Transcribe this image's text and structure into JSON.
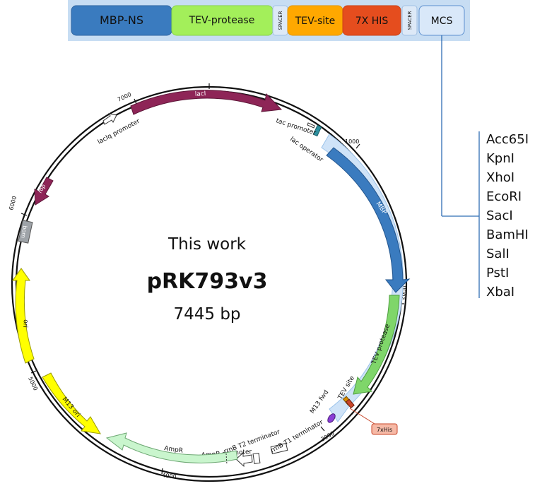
{
  "construct_bar": {
    "segments": [
      {
        "label": "MBP-NS",
        "color": "#3a7bbf"
      },
      {
        "label": "TEV-protease",
        "color": "#a3ef5a"
      },
      {
        "label": "SPACER",
        "color": "#dde9f7"
      },
      {
        "label": "TEV-site",
        "color": "#ffa800"
      },
      {
        "label": "7X HIS",
        "color": "#e54d1e"
      },
      {
        "label": "SPACER",
        "color": "#dde9f7"
      },
      {
        "label": "MCS",
        "color": "#d9e8f9"
      }
    ],
    "background": "#c7ddf3"
  },
  "mcs_sites": [
    "Acc65I",
    "KpnI",
    "XhoI",
    "EcoRI",
    "SacI",
    "BamHI",
    "SalI",
    "PstI",
    "XbaI"
  ],
  "plasmid": {
    "subtitle": "This work",
    "name": "pRK793v3",
    "size": "7445 bp"
  },
  "features": {
    "lacI": "lacI",
    "lacIq_promoter": "lacIq promoter",
    "tac_promoter": "tac promoter",
    "lac_operator": "lac operator",
    "MBP": "MBP",
    "TEV_protease": "TEV protease",
    "TEV_site": "TEV site",
    "M13_fwd": "M13 fwd",
    "his_tag": "7xHis",
    "rrnB_T1": "rrnB T1 terminator",
    "rrnB_T2": "rrnB T2 terminator",
    "AmpR_promoter": "AmpR promoter",
    "AmpR": "AmpR",
    "M13_ori": "M13 ori",
    "ori": "ori",
    "bom": "bom",
    "rop": "rop"
  },
  "ticks": {
    "t1000": "1000",
    "t2000": "2000",
    "t3000": "3000",
    "t4000": "4000",
    "t5000": "5000",
    "t6000": "6000",
    "t7000": "7000"
  }
}
